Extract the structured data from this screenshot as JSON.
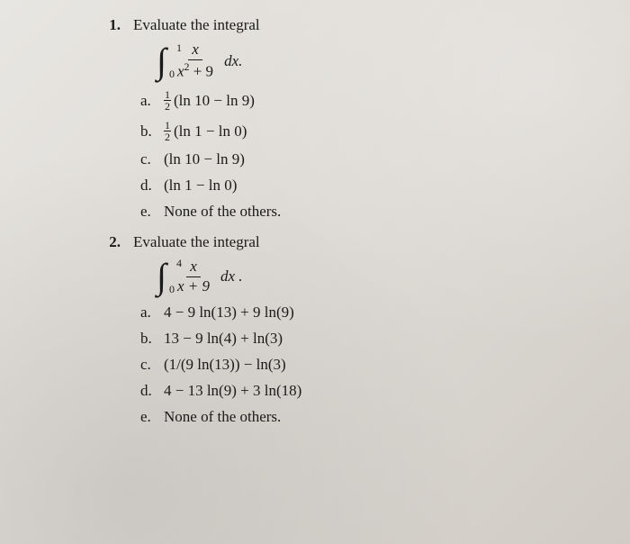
{
  "q1": {
    "number": "1.",
    "prompt": "Evaluate the integral",
    "upper": "1",
    "lower": "0",
    "frac_num": "x",
    "frac_den_a": "x",
    "frac_den_exp": "2",
    "frac_den_b": " + 9",
    "dx": "dx.",
    "options": {
      "a": {
        "letter": "a.",
        "half": true,
        "text": "(ln 10 − ln 9)"
      },
      "b": {
        "letter": "b.",
        "half": true,
        "text": "(ln 1 − ln 0)"
      },
      "c": {
        "letter": "c.",
        "half": false,
        "text": "(ln 10 − ln 9)"
      },
      "d": {
        "letter": "d.",
        "half": false,
        "text": "(ln 1 − ln 0)"
      },
      "e": {
        "letter": "e.",
        "half": false,
        "text": "None of the others."
      }
    }
  },
  "q2": {
    "number": "2.",
    "prompt": "Evaluate the integral",
    "upper": "4",
    "lower": "0",
    "frac_num": "x",
    "frac_den": "x + 9",
    "dx": "dx .",
    "options": {
      "a": {
        "letter": "a.",
        "text": "4 − 9 ln(13) + 9 ln(9)"
      },
      "b": {
        "letter": "b.",
        "text": "13 − 9 ln(4) + ln(3)"
      },
      "c": {
        "letter": "c.",
        "text": "(1/(9 ln(13)) − ln(3)"
      },
      "d": {
        "letter": "d.",
        "text": "4 − 13 ln(9) + 3 ln(18)"
      },
      "e": {
        "letter": "e.",
        "text": "None of the others."
      }
    }
  }
}
